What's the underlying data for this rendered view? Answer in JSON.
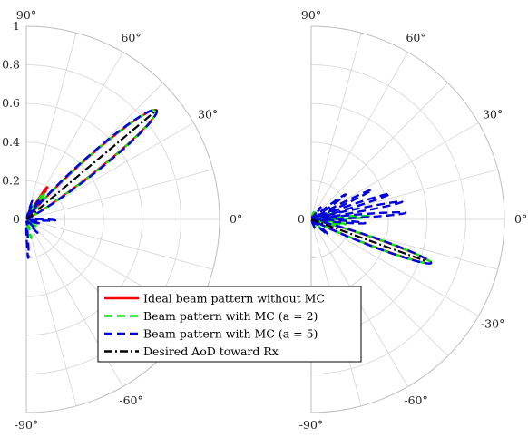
{
  "chart_data": {
    "type": "polar-line",
    "rlim": [
      0,
      1
    ],
    "theta_range_deg": [
      -90,
      90
    ],
    "angle_ticks": [
      "90°",
      "60°",
      "30°",
      "0°",
      "-30°",
      "-60°",
      "-90°"
    ],
    "angle_tick_values": [
      90,
      60,
      30,
      0,
      -30,
      -60,
      -90
    ],
    "radial_ticks": [
      "1",
      "0.8",
      "0.6",
      "0.4",
      "0.2",
      "0"
    ],
    "radial_tick_values": [
      1,
      0.8,
      0.6,
      0.4,
      0.2,
      0
    ],
    "grid": true,
    "legend_position": "bottom-center",
    "legend": [
      {
        "label": "Ideal beam pattern without MC",
        "color": "#ff0000",
        "dash": "solid"
      },
      {
        "label": "Beam pattern with MC (a = 2)",
        "color": "#00ee00",
        "dash": "dashed"
      },
      {
        "label": "Beam pattern with MC (a = 5)",
        "color": "#0000dd",
        "dash": "dashed"
      },
      {
        "label": "Desired AoD toward Rx",
        "color": "#000000",
        "dash": "dashdot"
      }
    ],
    "panels": [
      {
        "name": "left",
        "desired_aod_deg": 40,
        "desired_aod_r": 0.88,
        "series": [
          {
            "name": "Ideal beam pattern without MC",
            "color": "#ff0000",
            "dash": "solid",
            "lobes": [
              {
                "center": 40,
                "peak": 0.88,
                "width": 6.5
              },
              {
                "center": 57,
                "peak": 0.2,
                "width": 4
              },
              {
                "center": 70,
                "peak": 0.07,
                "width": 3
              }
            ]
          },
          {
            "name": "Beam pattern with MC (a = 2)",
            "color": "#00ee00",
            "dash": "dashed",
            "lobes": [
              {
                "center": 40,
                "peak": 0.88,
                "width": 6.8
              },
              {
                "center": 56,
                "peak": 0.17,
                "width": 4
              },
              {
                "center": 68,
                "peak": 0.08,
                "width": 3
              },
              {
                "center": -75,
                "peak": 0.1,
                "width": 4
              },
              {
                "center": -35,
                "peak": 0.06,
                "width": 4
              }
            ]
          },
          {
            "name": "Beam pattern with MC (a = 5)",
            "color": "#0000dd",
            "dash": "dashed",
            "lobes": [
              {
                "center": 40,
                "peak": 0.88,
                "width": 7.2
              },
              {
                "center": 56,
                "peak": 0.13,
                "width": 4
              },
              {
                "center": 72,
                "peak": 0.1,
                "width": 3
              },
              {
                "center": -2,
                "peak": 0.15,
                "width": 3
              },
              {
                "center": -18,
                "peak": 0.08,
                "width": 3
              },
              {
                "center": -50,
                "peak": 0.09,
                "width": 4
              },
              {
                "center": -87,
                "peak": 0.2,
                "width": 2.5
              }
            ]
          }
        ]
      },
      {
        "name": "right",
        "desired_aod_deg": -20,
        "desired_aod_r": 0.63,
        "series": [
          {
            "name": "Ideal beam pattern without MC",
            "color": "#ff0000",
            "dash": "solid",
            "lobes": [
              {
                "center": -20,
                "peak": 0.66,
                "width": 4.5
              },
              {
                "center": -5,
                "peak": 0.04,
                "width": 3
              },
              {
                "center": 12,
                "peak": 0.04,
                "width": 3
              }
            ]
          },
          {
            "name": "Beam pattern with MC (a = 2)",
            "color": "#00ee00",
            "dash": "dashed",
            "lobes": [
              {
                "center": -20,
                "peak": 0.66,
                "width": 4.8
              },
              {
                "center": -8,
                "peak": 0.18,
                "width": 3
              },
              {
                "center": 3,
                "peak": 0.3,
                "width": 3
              },
              {
                "center": 15,
                "peak": 0.12,
                "width": 3
              },
              {
                "center": -45,
                "peak": 0.08,
                "width": 4
              },
              {
                "center": 70,
                "peak": 0.04,
                "width": 5
              }
            ]
          },
          {
            "name": "Beam pattern with MC (a = 5)",
            "color": "#0000dd",
            "dash": "dashed",
            "lobes": [
              {
                "center": -20,
                "peak": 0.66,
                "width": 5
              },
              {
                "center": -4,
                "peak": 0.28,
                "width": 2.5
              },
              {
                "center": 4,
                "peak": 0.49,
                "width": 2.5
              },
              {
                "center": 11,
                "peak": 0.48,
                "width": 2.5
              },
              {
                "center": 18,
                "peak": 0.43,
                "width": 2.5
              },
              {
                "center": 26,
                "peak": 0.35,
                "width": 2.5
              },
              {
                "center": 36,
                "peak": 0.22,
                "width": 3
              },
              {
                "center": 52,
                "peak": 0.08,
                "width": 3
              },
              {
                "center": -42,
                "peak": 0.12,
                "width": 4
              },
              {
                "center": -66,
                "peak": 0.05,
                "width": 4
              }
            ]
          }
        ]
      }
    ]
  }
}
